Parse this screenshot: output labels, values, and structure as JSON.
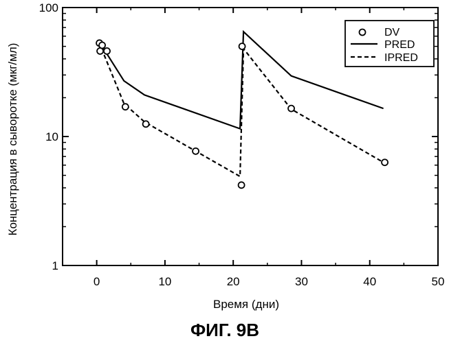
{
  "chart_data": {
    "type": "line",
    "title": "",
    "xlabel": "Время (дни)",
    "ylabel": "Концентрация в сыворотке (мкг/мл)",
    "xlim": [
      -5,
      50
    ],
    "ylim": [
      1,
      100
    ],
    "yscale": "log",
    "x_ticks": [
      0,
      10,
      20,
      30,
      40,
      50
    ],
    "y_ticks": [
      1,
      10,
      100
    ],
    "x_tick_labels": [
      "0",
      "10",
      "20",
      "30",
      "40",
      "50"
    ],
    "y_tick_labels": [
      "1",
      "10",
      "100"
    ],
    "legend": {
      "position": "top-right",
      "entries": [
        "DV",
        "PRED",
        "IPRED"
      ]
    },
    "series": [
      {
        "name": "DV",
        "style": "markers-open-circle",
        "points": [
          [
            0.4,
            53
          ],
          [
            0.5,
            46
          ],
          [
            0.8,
            51
          ],
          [
            1.5,
            46
          ],
          [
            4.2,
            17
          ],
          [
            7.2,
            12.5
          ],
          [
            14.5,
            7.7
          ],
          [
            21.3,
            50
          ],
          [
            21.2,
            4.2
          ],
          [
            28.5,
            16.5
          ],
          [
            42.2,
            6.3
          ]
        ]
      },
      {
        "name": "PRED",
        "style": "solid",
        "points": [
          [
            0.5,
            53
          ],
          [
            4.0,
            27
          ],
          [
            7.0,
            21
          ],
          [
            21.0,
            11.5
          ],
          [
            21.5,
            65
          ],
          [
            28.5,
            29.5
          ],
          [
            42.0,
            16.5
          ]
        ]
      },
      {
        "name": "IPRED",
        "style": "dashed",
        "points": [
          [
            0.4,
            54
          ],
          [
            1.0,
            44
          ],
          [
            4.0,
            18
          ],
          [
            7.0,
            13
          ],
          [
            14.5,
            7.7
          ],
          [
            21.0,
            4.9
          ],
          [
            21.5,
            48
          ],
          [
            28.5,
            16.3
          ],
          [
            42.0,
            6.3
          ]
        ]
      }
    ]
  },
  "caption": "ФИГ. 9B"
}
